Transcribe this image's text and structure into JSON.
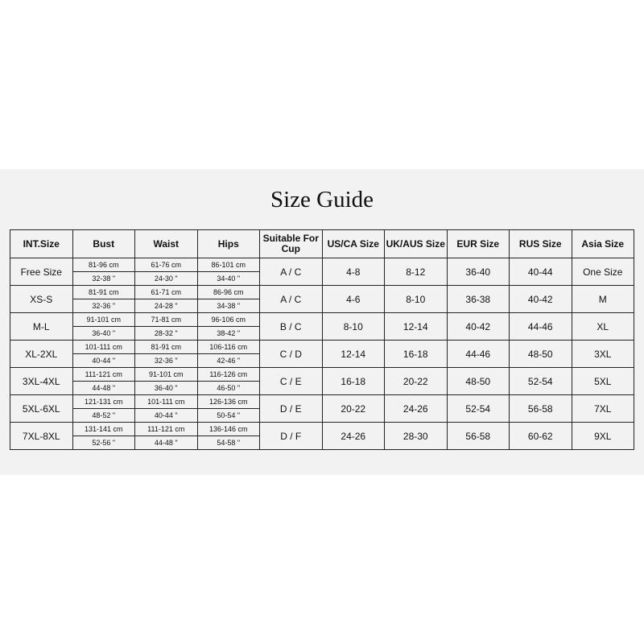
{
  "title": "Size Guide",
  "headers": [
    "INT.Size",
    "Bust",
    "Waist",
    "Hips",
    "Suitable For Cup",
    "US/CA Size",
    "UK/AUS Size",
    "EUR Size",
    "RUS Size",
    "Asia Size"
  ],
  "rows": [
    {
      "int": "Free Size",
      "bust_cm": "81-96 cm",
      "bust_in": "32-38 \"",
      "waist_cm": "61-76 cm",
      "waist_in": "24-30 \"",
      "hips_cm": "86-101 cm",
      "hips_in": "34-40 \"",
      "cup": "A / C",
      "us": "4-8",
      "uk": "8-12",
      "eur": "36-40",
      "rus": "40-44",
      "asia": "One Size"
    },
    {
      "int": "XS-S",
      "bust_cm": "81-91 cm",
      "bust_in": "32-36 \"",
      "waist_cm": "61-71 cm",
      "waist_in": "24-28 \"",
      "hips_cm": "86-96 cm",
      "hips_in": "34-38 \"",
      "cup": "A / C",
      "us": "4-6",
      "uk": "8-10",
      "eur": "36-38",
      "rus": "40-42",
      "asia": "M"
    },
    {
      "int": "M-L",
      "bust_cm": "91-101 cm",
      "bust_in": "36-40 \"",
      "waist_cm": "71-81 cm",
      "waist_in": "28-32 \"",
      "hips_cm": "96-106 cm",
      "hips_in": "38-42 \"",
      "cup": "B / C",
      "us": "8-10",
      "uk": "12-14",
      "eur": "40-42",
      "rus": "44-46",
      "asia": "XL"
    },
    {
      "int": "XL-2XL",
      "bust_cm": "101-111 cm",
      "bust_in": "40-44 \"",
      "waist_cm": "81-91 cm",
      "waist_in": "32-36 \"",
      "hips_cm": "106-116 cm",
      "hips_in": "42-46 \"",
      "cup": "C / D",
      "us": "12-14",
      "uk": "16-18",
      "eur": "44-46",
      "rus": "48-50",
      "asia": "3XL"
    },
    {
      "int": "3XL-4XL",
      "bust_cm": "111-121 cm",
      "bust_in": "44-48 \"",
      "waist_cm": "91-101 cm",
      "waist_in": "36-40 \"",
      "hips_cm": "116-126 cm",
      "hips_in": "46-50 \"",
      "cup": "C / E",
      "us": "16-18",
      "uk": "20-22",
      "eur": "48-50",
      "rus": "52-54",
      "asia": "5XL"
    },
    {
      "int": "5XL-6XL",
      "bust_cm": "121-131 cm",
      "bust_in": "48-52 \"",
      "waist_cm": "101-111 cm",
      "waist_in": "40-44 \"",
      "hips_cm": "126-136 cm",
      "hips_in": "50-54 \"",
      "cup": "D / E",
      "us": "20-22",
      "uk": "24-26",
      "eur": "52-54",
      "rus": "56-58",
      "asia": "7XL"
    },
    {
      "int": "7XL-8XL",
      "bust_cm": "131-141 cm",
      "bust_in": "52-56 \"",
      "waist_cm": "111-121 cm",
      "waist_in": "44-48 \"",
      "hips_cm": "136-146 cm",
      "hips_in": "54-58 \"",
      "cup": "D / F",
      "us": "24-26",
      "uk": "28-30",
      "eur": "56-58",
      "rus": "60-62",
      "asia": "9XL"
    }
  ]
}
